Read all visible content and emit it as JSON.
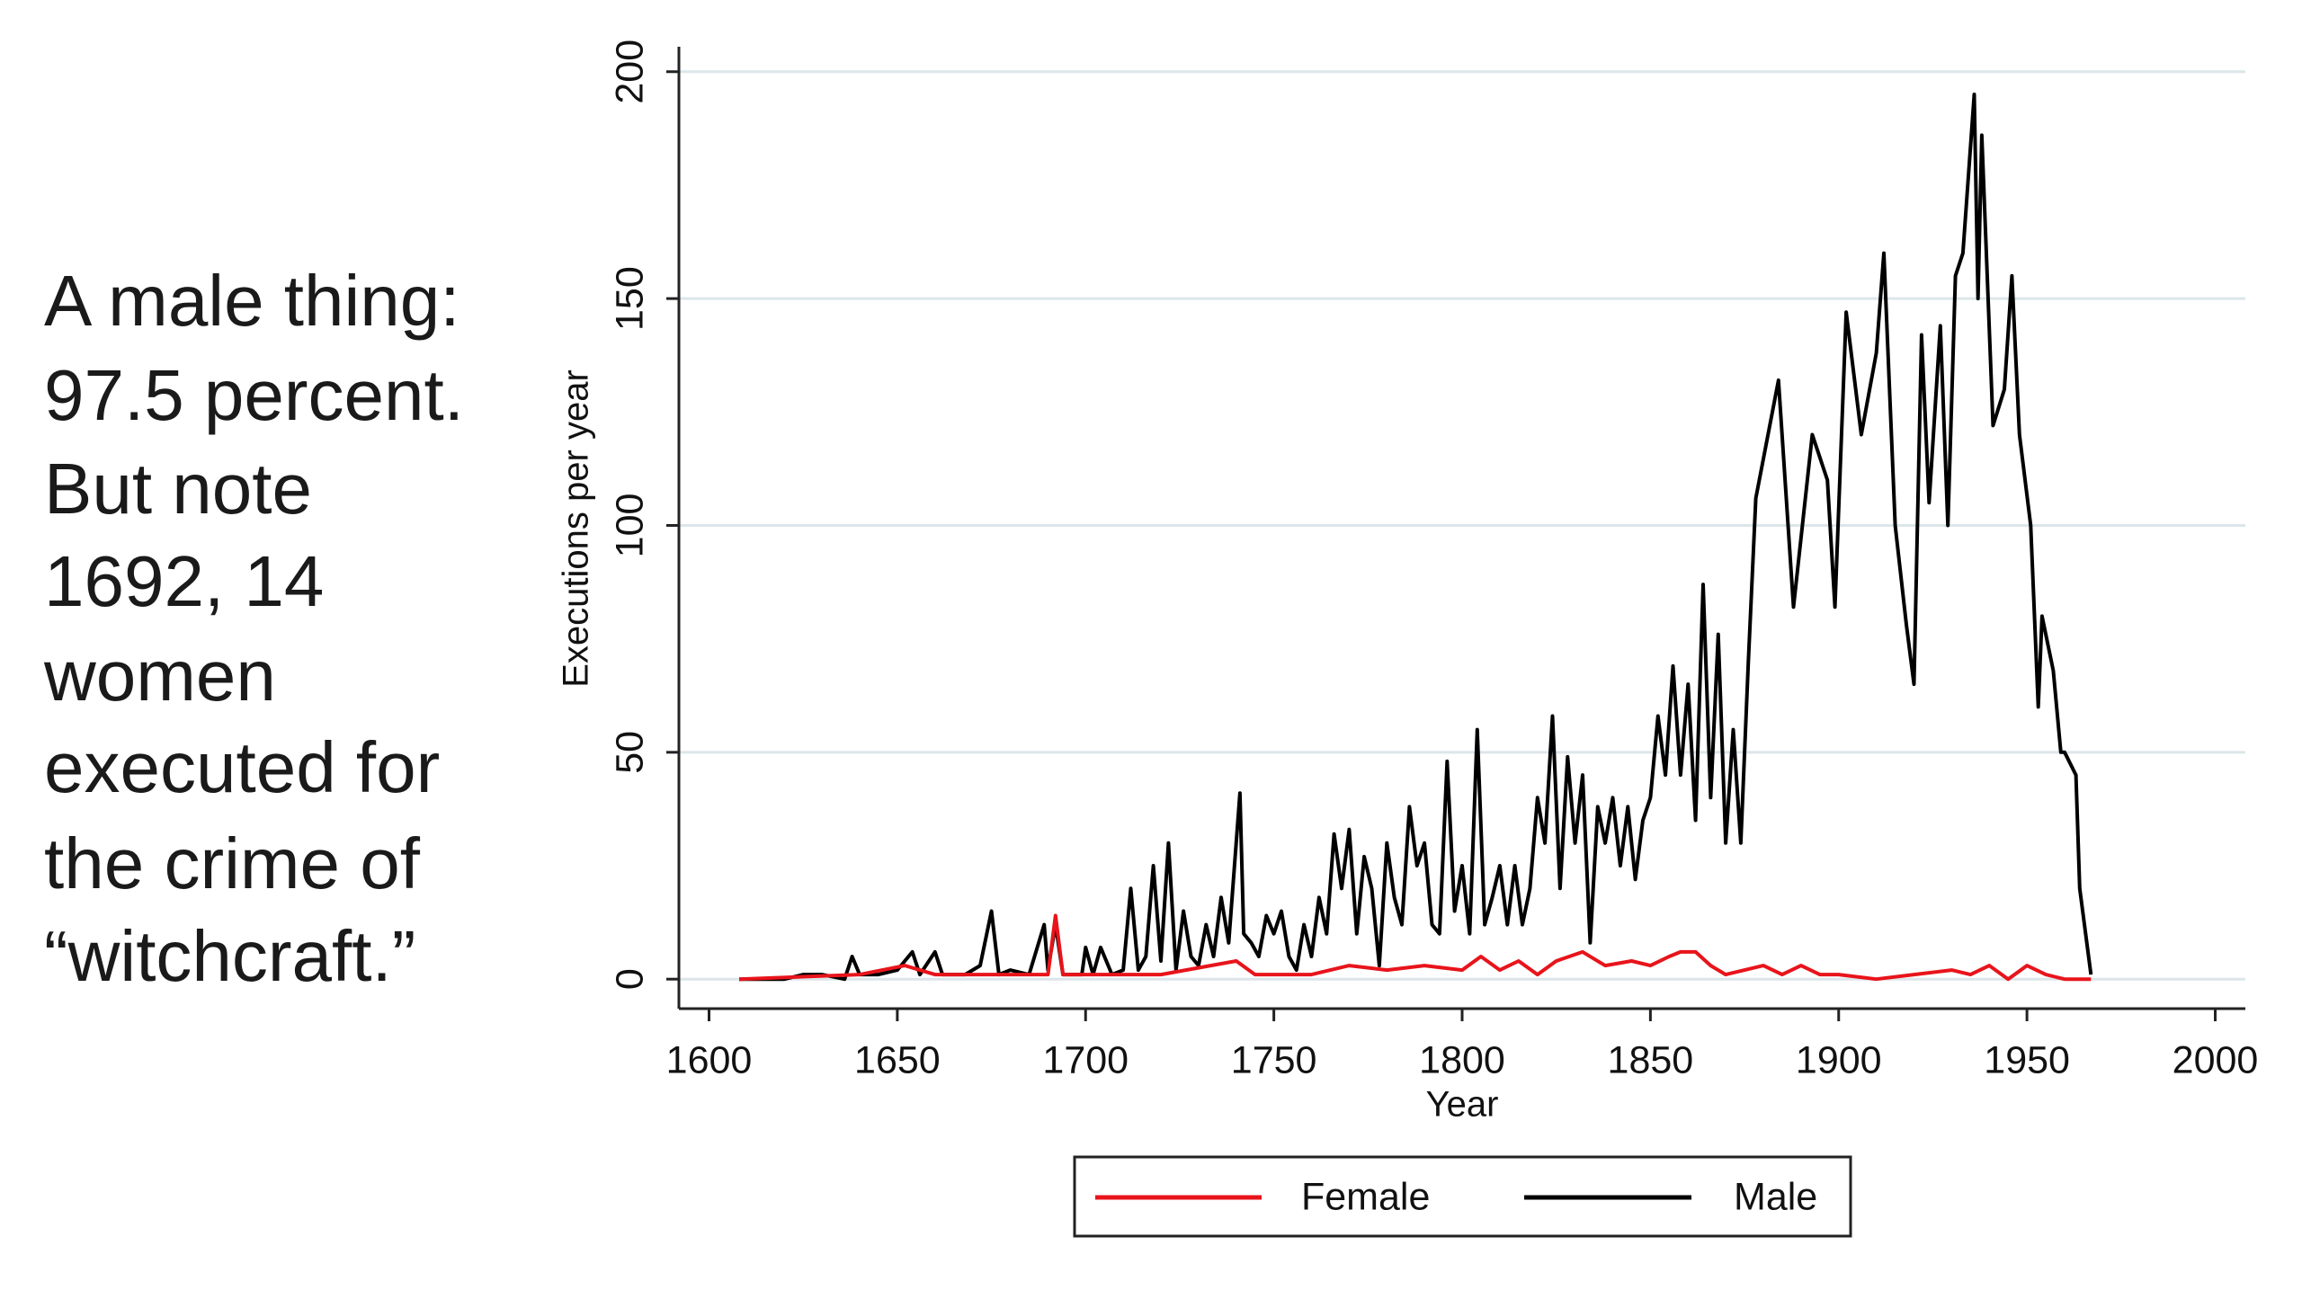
{
  "chart_data": {
    "type": "line",
    "annotation": [
      "A male thing:",
      "97.5 percent.",
      "But note",
      "1692, 14",
      "women",
      "executed for",
      "the crime of",
      "“witchcraft.”"
    ],
    "xlabel": "Year",
    "ylabel": "Executions per year",
    "xlim": [
      1592,
      2008
    ],
    "ylim": [
      -6.5,
      205.5
    ],
    "xticks": [
      1600,
      1650,
      1700,
      1750,
      1800,
      1850,
      1900,
      1950,
      2000
    ],
    "yticks": [
      0,
      50,
      100,
      150,
      200
    ],
    "grid": true,
    "legend": "bottom",
    "series": [
      {
        "name": "Female",
        "color": "#e8141b",
        "x": [
          1608,
          1640,
          1652,
          1660,
          1690,
          1692,
          1694,
          1720,
          1740,
          1745,
          1760,
          1770,
          1780,
          1790,
          1800,
          1805,
          1810,
          1815,
          1820,
          1825,
          1832,
          1838,
          1845,
          1850,
          1855,
          1858,
          1862,
          1866,
          1870,
          1880,
          1885,
          1890,
          1895,
          1900,
          1910,
          1920,
          1930,
          1935,
          1940,
          1945,
          1950,
          1955,
          1960,
          1967
        ],
        "values": [
          0,
          1,
          3,
          1,
          1,
          14,
          1,
          1,
          4,
          1,
          1,
          3,
          2,
          3,
          2,
          5,
          2,
          4,
          1,
          4,
          6,
          3,
          4,
          3,
          5,
          6,
          6,
          3,
          1,
          3,
          1,
          3,
          1,
          1,
          0,
          1,
          2,
          1,
          3,
          0,
          3,
          1,
          0,
          0
        ]
      },
      {
        "name": "Male",
        "color": "#000000",
        "x": [
          1608,
          1620,
          1625,
          1630,
          1636,
          1638,
          1640,
          1645,
          1650,
          1654,
          1656,
          1660,
          1662,
          1668,
          1672,
          1675,
          1677,
          1680,
          1685,
          1689,
          1690,
          1692,
          1694,
          1699,
          1700,
          1702,
          1704,
          1707,
          1710,
          1712,
          1714,
          1716,
          1718,
          1720,
          1722,
          1724,
          1726,
          1728,
          1730,
          1732,
          1734,
          1736,
          1738,
          1741,
          1742,
          1744,
          1746,
          1748,
          1750,
          1752,
          1754,
          1756,
          1758,
          1760,
          1762,
          1764,
          1766,
          1768,
          1770,
          1772,
          1774,
          1776,
          1778,
          1780,
          1782,
          1784,
          1786,
          1788,
          1790,
          1792,
          1794,
          1796,
          1798,
          1800,
          1802,
          1804,
          1806,
          1808,
          1810,
          1812,
          1814,
          1816,
          1818,
          1820,
          1822,
          1824,
          1826,
          1828,
          1830,
          1832,
          1834,
          1836,
          1838,
          1840,
          1842,
          1844,
          1846,
          1848,
          1850,
          1852,
          1854,
          1856,
          1858,
          1860,
          1862,
          1864,
          1866,
          1868,
          1870,
          1872,
          1874,
          1876,
          1878,
          1884,
          1888,
          1893,
          1897,
          1899,
          1902,
          1906,
          1910,
          1912,
          1915,
          1918,
          1920,
          1922,
          1924,
          1927,
          1929,
          1931,
          1933,
          1936,
          1937,
          1938,
          1941,
          1944,
          1946,
          1948,
          1951,
          1953,
          1954,
          1957,
          1959,
          1960,
          1963,
          1964,
          1967
        ],
        "values": [
          0,
          0,
          1,
          1,
          0,
          5,
          1,
          1,
          2,
          6,
          1,
          6,
          1,
          1,
          3,
          15,
          1,
          2,
          1,
          12,
          2,
          12,
          1,
          1,
          7,
          1,
          7,
          1,
          2,
          20,
          2,
          5,
          25,
          4,
          30,
          2,
          15,
          5,
          3,
          12,
          5,
          18,
          8,
          41,
          10,
          8,
          5,
          14,
          10,
          15,
          5,
          2,
          12,
          5,
          18,
          10,
          32,
          20,
          33,
          10,
          27,
          20,
          3,
          30,
          18,
          12,
          38,
          25,
          30,
          12,
          10,
          48,
          15,
          25,
          10,
          55,
          12,
          18,
          25,
          12,
          25,
          12,
          20,
          40,
          30,
          58,
          20,
          49,
          30,
          45,
          8,
          38,
          30,
          40,
          25,
          38,
          22,
          35,
          40,
          58,
          45,
          69,
          45,
          65,
          35,
          87,
          40,
          76,
          30,
          55,
          30,
          70,
          106,
          132,
          82,
          120,
          110,
          82,
          147,
          120,
          138,
          160,
          100,
          78,
          65,
          142,
          105,
          144,
          100,
          155,
          160,
          195,
          150,
          186,
          122,
          130,
          155,
          120,
          100,
          60,
          80,
          68,
          50,
          50,
          45,
          20,
          1
        ]
      }
    ]
  }
}
